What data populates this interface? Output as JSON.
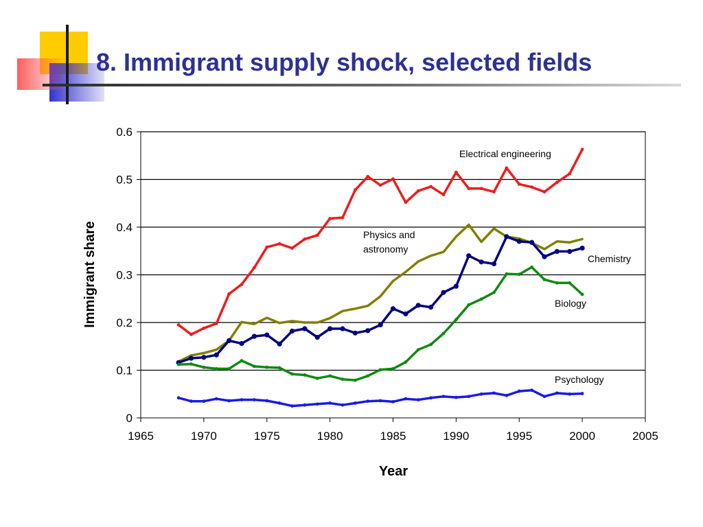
{
  "slide": {
    "title": "8. Immigrant supply shock, selected fields",
    "decoration": {
      "yellow": "#ffcc00",
      "red": "#ff3333",
      "blue": "#3333cc",
      "line": "#1a1a1a"
    }
  },
  "chart_data": {
    "type": "line",
    "xlabel": "Year",
    "ylabel": "Immigrant share",
    "xlim": [
      1965,
      2005
    ],
    "ylim": [
      0,
      0.6
    ],
    "xticks": [
      "1965",
      "1970",
      "1975",
      "1980",
      "1985",
      "1990",
      "1995",
      "2000",
      "2005"
    ],
    "yticks": [
      "0",
      "0.1",
      "0.2",
      "0.3",
      "0.4",
      "0.5",
      "0.6"
    ],
    "grid": "horizontal",
    "x": [
      1968,
      1969,
      1970,
      1971,
      1972,
      1973,
      1974,
      1975,
      1976,
      1977,
      1978,
      1979,
      1980,
      1981,
      1982,
      1983,
      1984,
      1985,
      1986,
      1987,
      1988,
      1989,
      1990,
      1991,
      1992,
      1993,
      1994,
      1995,
      1996,
      1997,
      1998,
      1999,
      2000
    ],
    "series": [
      {
        "name": "Electrical engineering",
        "color": "#ee1c1c",
        "marker": "small",
        "label": [
          "Electrical engineering"
        ],
        "values": [
          0.195,
          0.175,
          0.188,
          0.198,
          0.26,
          0.28,
          0.315,
          0.358,
          0.365,
          0.356,
          0.375,
          0.383,
          0.418,
          0.42,
          0.478,
          0.506,
          0.488,
          0.501,
          0.452,
          0.476,
          0.485,
          0.468,
          0.515,
          0.481,
          0.481,
          0.474,
          0.524,
          0.49,
          0.484,
          0.474,
          0.494,
          0.512,
          0.563
        ]
      },
      {
        "name": "Physics and astronomy",
        "color": "#808000",
        "marker": "none",
        "label": [
          "Physics and",
          "astronomy"
        ],
        "values": [
          0.118,
          0.131,
          0.136,
          0.143,
          0.162,
          0.201,
          0.197,
          0.21,
          0.199,
          0.203,
          0.2,
          0.2,
          0.209,
          0.224,
          0.229,
          0.235,
          0.255,
          0.287,
          0.306,
          0.328,
          0.34,
          0.348,
          0.38,
          0.405,
          0.369,
          0.397,
          0.38,
          0.376,
          0.367,
          0.354,
          0.37,
          0.368,
          0.375
        ]
      },
      {
        "name": "Chemistry",
        "color": "#000080",
        "marker": "dot",
        "label": [
          "Chemistry"
        ],
        "values": [
          0.116,
          0.125,
          0.127,
          0.132,
          0.162,
          0.156,
          0.171,
          0.174,
          0.155,
          0.182,
          0.187,
          0.169,
          0.187,
          0.187,
          0.178,
          0.183,
          0.195,
          0.229,
          0.218,
          0.236,
          0.232,
          0.263,
          0.276,
          0.34,
          0.327,
          0.323,
          0.38,
          0.37,
          0.368,
          0.338,
          0.349,
          0.349,
          0.356
        ]
      },
      {
        "name": "Biology",
        "color": "#118a11",
        "marker": "small",
        "label": [
          "Biology"
        ],
        "values": [
          0.112,
          0.113,
          0.106,
          0.103,
          0.103,
          0.12,
          0.108,
          0.106,
          0.105,
          0.092,
          0.09,
          0.083,
          0.088,
          0.081,
          0.079,
          0.088,
          0.101,
          0.103,
          0.117,
          0.143,
          0.154,
          0.177,
          0.206,
          0.237,
          0.249,
          0.263,
          0.302,
          0.301,
          0.316,
          0.29,
          0.283,
          0.283,
          0.259
        ]
      },
      {
        "name": "Psychology",
        "color": "#1a1ae6",
        "marker": "small",
        "label": [
          "Psychology"
        ],
        "values": [
          0.042,
          0.035,
          0.035,
          0.04,
          0.036,
          0.038,
          0.038,
          0.036,
          0.031,
          0.025,
          0.027,
          0.029,
          0.031,
          0.027,
          0.031,
          0.035,
          0.036,
          0.034,
          0.04,
          0.038,
          0.042,
          0.045,
          0.043,
          0.045,
          0.05,
          0.052,
          0.047,
          0.056,
          0.058,
          0.045,
          0.052,
          0.05,
          0.051
        ]
      }
    ]
  }
}
